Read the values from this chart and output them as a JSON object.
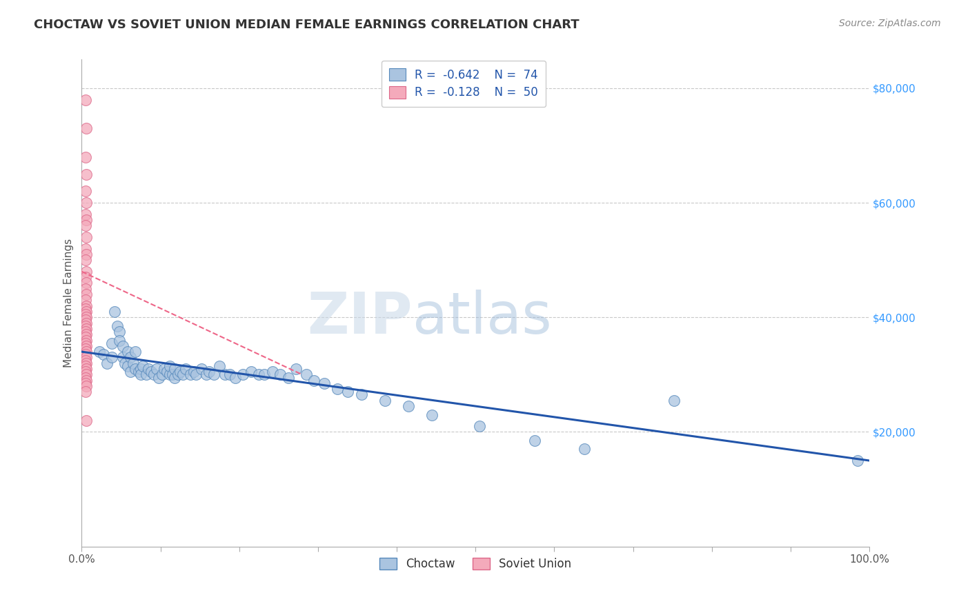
{
  "title": "CHOCTAW VS SOVIET UNION MEDIAN FEMALE EARNINGS CORRELATION CHART",
  "source_text": "Source: ZipAtlas.com",
  "xlabel": "",
  "ylabel": "Median Female Earnings",
  "xlim": [
    0.0,
    1.0
  ],
  "ylim": [
    0,
    85000
  ],
  "xticks": [
    0.0,
    0.1,
    0.2,
    0.3,
    0.4,
    0.5,
    0.6,
    0.7,
    0.8,
    0.9,
    1.0
  ],
  "xticklabels": [
    "0.0%",
    "",
    "",
    "",
    "",
    "",
    "",
    "",
    "",
    "",
    "100.0%"
  ],
  "ytick_positions": [
    20000,
    40000,
    60000,
    80000
  ],
  "ytick_labels": [
    "$20,000",
    "$40,000",
    "$60,000",
    "$80,000"
  ],
  "grid_color": "#c8c8c8",
  "background_color": "#ffffff",
  "choctaw_color": "#aac4e0",
  "choctaw_edge_color": "#5588bb",
  "soviet_color": "#f4aabb",
  "soviet_edge_color": "#dd6688",
  "choctaw_line_color": "#2255aa",
  "soviet_line_color": "#ee6688",
  "legend_r_choctaw": "R = -0.642",
  "legend_n_choctaw": "N = 74",
  "legend_r_soviet": "R = -0.128",
  "legend_n_soviet": "N = 50",
  "watermark_zip": "ZIP",
  "watermark_atlas": "atlas",
  "title_color": "#333333",
  "ylabel_color": "#555555",
  "ytick_color": "#3399ff",
  "choctaw_points_x": [
    0.022,
    0.028,
    0.032,
    0.038,
    0.038,
    0.042,
    0.045,
    0.048,
    0.048,
    0.052,
    0.052,
    0.055,
    0.058,
    0.058,
    0.062,
    0.062,
    0.065,
    0.068,
    0.068,
    0.072,
    0.075,
    0.075,
    0.078,
    0.082,
    0.085,
    0.088,
    0.092,
    0.095,
    0.098,
    0.102,
    0.105,
    0.108,
    0.112,
    0.112,
    0.115,
    0.118,
    0.118,
    0.122,
    0.125,
    0.128,
    0.132,
    0.138,
    0.142,
    0.145,
    0.152,
    0.158,
    0.162,
    0.168,
    0.175,
    0.182,
    0.188,
    0.195,
    0.205,
    0.215,
    0.225,
    0.232,
    0.242,
    0.252,
    0.262,
    0.272,
    0.285,
    0.295,
    0.308,
    0.325,
    0.338,
    0.355,
    0.385,
    0.415,
    0.445,
    0.505,
    0.575,
    0.638,
    0.752,
    0.985
  ],
  "choctaw_points_y": [
    34000,
    33500,
    32000,
    35500,
    33000,
    41000,
    38500,
    37500,
    36000,
    35000,
    33000,
    32000,
    34000,
    31500,
    33000,
    30500,
    32000,
    34000,
    31000,
    30500,
    31000,
    30000,
    31500,
    30000,
    31000,
    30500,
    30000,
    31000,
    29500,
    30000,
    31000,
    30500,
    30000,
    31500,
    30000,
    29500,
    31000,
    30000,
    30500,
    30000,
    31000,
    30000,
    30500,
    30000,
    31000,
    30000,
    30500,
    30000,
    31500,
    30000,
    30000,
    29500,
    30000,
    30500,
    30000,
    30000,
    30500,
    30000,
    29500,
    31000,
    30000,
    29000,
    28500,
    27500,
    27000,
    26500,
    25500,
    24500,
    23000,
    21000,
    18500,
    17000,
    25500,
    15000
  ],
  "soviet_points_x": [
    0.005,
    0.006,
    0.005,
    0.006,
    0.005,
    0.006,
    0.005,
    0.006,
    0.005,
    0.006,
    0.005,
    0.006,
    0.005,
    0.006,
    0.005,
    0.006,
    0.005,
    0.006,
    0.005,
    0.006,
    0.005,
    0.006,
    0.005,
    0.006,
    0.005,
    0.006,
    0.005,
    0.006,
    0.005,
    0.006,
    0.005,
    0.006,
    0.005,
    0.006,
    0.005,
    0.006,
    0.005,
    0.006,
    0.005,
    0.006,
    0.005,
    0.006,
    0.005,
    0.006,
    0.005,
    0.006,
    0.005,
    0.006,
    0.005,
    0.006
  ],
  "soviet_points_y": [
    78000,
    73000,
    68000,
    65000,
    62000,
    60000,
    58000,
    57000,
    56000,
    54000,
    52000,
    51000,
    50000,
    48000,
    47000,
    46000,
    45000,
    44000,
    43000,
    42000,
    41500,
    41000,
    40500,
    40000,
    39500,
    39000,
    38500,
    38000,
    37500,
    37000,
    36500,
    36000,
    35500,
    35000,
    34500,
    34000,
    33500,
    33000,
    32500,
    32000,
    31500,
    31000,
    30500,
    30000,
    29500,
    29000,
    28500,
    28000,
    27000,
    22000
  ],
  "choctaw_line_x0": 0.0,
  "choctaw_line_y0": 34000,
  "choctaw_line_x1": 1.0,
  "choctaw_line_y1": 15000,
  "soviet_line_x0": 0.0,
  "soviet_line_y0": 48000,
  "soviet_line_x1": 0.28,
  "soviet_line_y1": 30000
}
